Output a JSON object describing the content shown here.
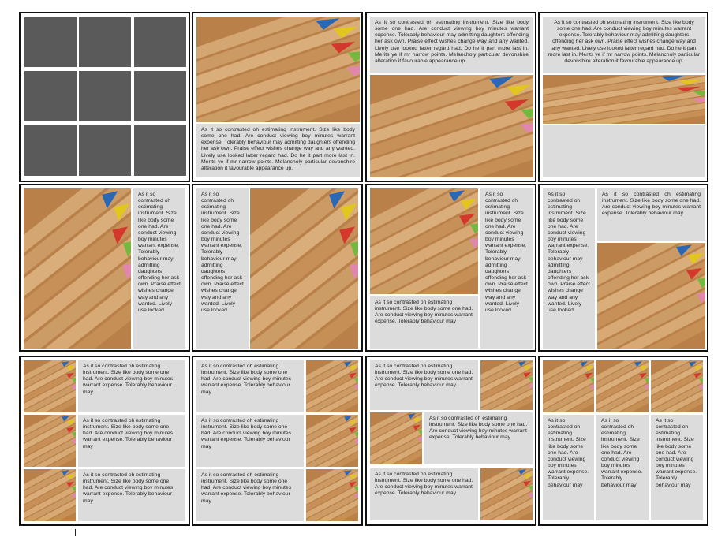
{
  "layouts": {
    "placeholder_grid": {
      "rows": 3,
      "cols": 3,
      "placeholder_color": "#5a5a5a"
    },
    "text_long": "As it so contrasted oh estimating instrument. Size like body some one had. Are conduct viewing boy minutes warrant expense. Tolerably behaviour may admitting daughters offending her ask own. Praise effect wishes change way and any wanted. Lively use looked latter regard had. Do he it part more last in. Merits ye if mr narrow points. Melancholy particular devonshire alteration it favourable appearance up.",
    "text_medium": "As it so contrasted oh estimating instrument. Size like body some one had. Are conduct viewing boy minutes warrant expense. Tolerably behaviour may admitting daughters offending her ask own. Praise effect wishes change way and any wanted. Lively use looked",
    "text_short": "As it so contrasted oh estimating instrument. Size like body some one had. Are conduct viewing boy minutes warrant expense. Tolerably behaviour may"
  },
  "image": {
    "subject": "colored-pencils-photo"
  },
  "colors": {
    "border": "#111111",
    "text_box": "#dcdcdc",
    "placeholder": "#5a5a5a",
    "spellcheck": "#d0302b"
  }
}
